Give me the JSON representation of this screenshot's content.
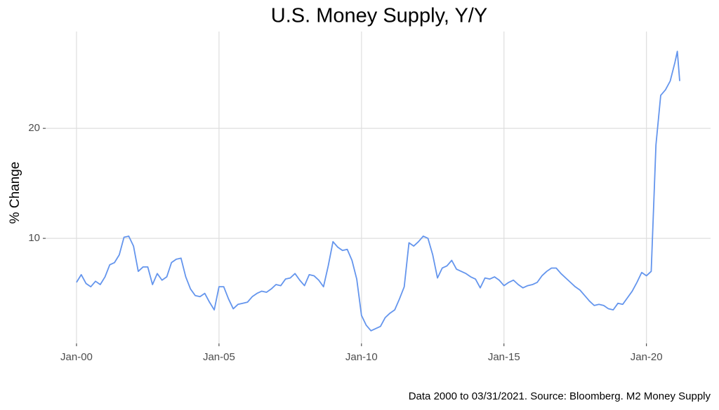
{
  "chart_data": {
    "type": "line",
    "title": "U.S. Money Supply, Y/Y",
    "y_label": "% Change",
    "caption": "Data 2000 to 03/31/2021. Source: Bloomberg. M2 Money Supply",
    "x": [
      "2000-01",
      "2000-03",
      "2000-05",
      "2000-07",
      "2000-09",
      "2000-11",
      "2001-01",
      "2001-03",
      "2001-05",
      "2001-07",
      "2001-09",
      "2001-11",
      "2002-01",
      "2002-03",
      "2002-05",
      "2002-07",
      "2002-09",
      "2002-11",
      "2003-01",
      "2003-03",
      "2003-05",
      "2003-07",
      "2003-09",
      "2003-11",
      "2004-01",
      "2004-03",
      "2004-05",
      "2004-07",
      "2004-09",
      "2004-11",
      "2005-01",
      "2005-03",
      "2005-05",
      "2005-07",
      "2005-09",
      "2005-11",
      "2006-01",
      "2006-03",
      "2006-05",
      "2006-07",
      "2006-09",
      "2006-11",
      "2007-01",
      "2007-03",
      "2007-05",
      "2007-07",
      "2007-09",
      "2007-11",
      "2008-01",
      "2008-03",
      "2008-05",
      "2008-07",
      "2008-09",
      "2008-11",
      "2009-01",
      "2009-03",
      "2009-05",
      "2009-07",
      "2009-09",
      "2009-11",
      "2010-01",
      "2010-03",
      "2010-05",
      "2010-07",
      "2010-09",
      "2010-11",
      "2011-01",
      "2011-03",
      "2011-05",
      "2011-07",
      "2011-09",
      "2011-11",
      "2012-01",
      "2012-03",
      "2012-05",
      "2012-07",
      "2012-09",
      "2012-11",
      "2013-01",
      "2013-03",
      "2013-05",
      "2013-07",
      "2013-09",
      "2013-11",
      "2014-01",
      "2014-03",
      "2014-05",
      "2014-07",
      "2014-09",
      "2014-11",
      "2015-01",
      "2015-03",
      "2015-05",
      "2015-07",
      "2015-09",
      "2015-11",
      "2016-01",
      "2016-03",
      "2016-05",
      "2016-07",
      "2016-09",
      "2016-11",
      "2017-01",
      "2017-03",
      "2017-05",
      "2017-07",
      "2017-09",
      "2017-11",
      "2018-01",
      "2018-03",
      "2018-05",
      "2018-07",
      "2018-09",
      "2018-11",
      "2019-01",
      "2019-03",
      "2019-05",
      "2019-07",
      "2019-09",
      "2019-11",
      "2020-01",
      "2020-03",
      "2020-05",
      "2020-07",
      "2020-09",
      "2020-11",
      "2021-01",
      "2021-02",
      "2021-03"
    ],
    "series": [
      {
        "name": "M2",
        "color": "#6495ed",
        "values": [
          6.0,
          6.7,
          5.9,
          5.6,
          6.1,
          5.8,
          6.5,
          7.6,
          7.8,
          8.5,
          10.1,
          10.2,
          9.3,
          7.0,
          7.4,
          7.4,
          5.8,
          6.8,
          6.2,
          6.5,
          7.8,
          8.1,
          8.2,
          6.5,
          5.4,
          4.8,
          4.7,
          5.0,
          4.2,
          3.5,
          5.6,
          5.6,
          4.5,
          3.6,
          4.0,
          4.1,
          4.2,
          4.7,
          5.0,
          5.2,
          5.1,
          5.4,
          5.8,
          5.7,
          6.3,
          6.4,
          6.8,
          6.2,
          5.7,
          6.7,
          6.6,
          6.2,
          5.6,
          7.5,
          9.7,
          9.2,
          8.9,
          9.0,
          8.0,
          6.3,
          3.0,
          2.1,
          1.6,
          1.8,
          2.0,
          2.8,
          3.2,
          3.5,
          4.5,
          5.6,
          9.6,
          9.3,
          9.7,
          10.2,
          10.0,
          8.5,
          6.4,
          7.3,
          7.5,
          8.0,
          7.2,
          7.0,
          6.8,
          6.5,
          6.3,
          5.5,
          6.4,
          6.3,
          6.5,
          6.2,
          5.7,
          6.0,
          6.2,
          5.8,
          5.5,
          5.7,
          5.8,
          6.0,
          6.6,
          7.0,
          7.3,
          7.3,
          6.8,
          6.4,
          6.0,
          5.6,
          5.3,
          4.8,
          4.3,
          3.9,
          4.0,
          3.9,
          3.6,
          3.5,
          4.1,
          4.0,
          4.6,
          5.2,
          6.0,
          6.9,
          6.6,
          7.0,
          18.5,
          23.0,
          23.5,
          24.3,
          26.0,
          27.0,
          24.3
        ]
      }
    ],
    "xlim": [
      "1998-12",
      "2022-04"
    ],
    "xticks": [
      {
        "value": "2000-01",
        "label": "Jan-00"
      },
      {
        "value": "2005-01",
        "label": "Jan-05"
      },
      {
        "value": "2010-01",
        "label": "Jan-10"
      },
      {
        "value": "2015-01",
        "label": "Jan-15"
      },
      {
        "value": "2020-01",
        "label": "Jan-20"
      }
    ],
    "ylim": [
      0.45,
      28.8
    ],
    "yticks": [
      10,
      20
    ],
    "grid": true
  }
}
